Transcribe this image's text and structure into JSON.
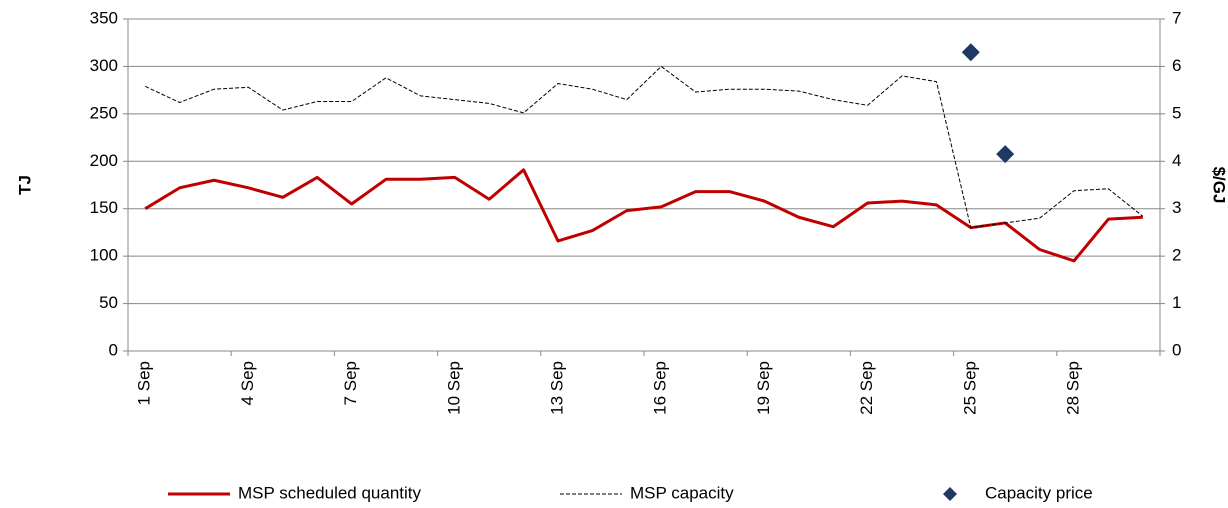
{
  "chart_data": {
    "type": "line",
    "categories": [
      "1 Sep",
      null,
      null,
      "4 Sep",
      null,
      null,
      "7 Sep",
      null,
      null,
      "10 Sep",
      null,
      null,
      "13 Sep",
      null,
      null,
      "16 Sep",
      null,
      null,
      "19 Sep",
      null,
      null,
      "22 Sep",
      null,
      null,
      "25 Sep",
      null,
      null,
      "28 Sep",
      null,
      null
    ],
    "y_label": "TJ",
    "y2_label": "$/GJ",
    "ylim": [
      0,
      350
    ],
    "yticks": [
      0,
      50,
      100,
      150,
      200,
      250,
      300,
      350
    ],
    "y2lim": [
      0,
      7
    ],
    "y2ticks": [
      0,
      1,
      2,
      3,
      4,
      5,
      6,
      7
    ],
    "grid": true,
    "legend": "bottom",
    "series": [
      {
        "name": "MSP scheduled quantity",
        "color": "#c00000",
        "style": "solid",
        "values": [
          150,
          172,
          180,
          172,
          162,
          183,
          155,
          181,
          181,
          183,
          160,
          191,
          116,
          127,
          148,
          152,
          168,
          168,
          158,
          141,
          131,
          156,
          158,
          154,
          130,
          135,
          107,
          95,
          139,
          141
        ]
      },
      {
        "name": "MSP capacity",
        "color": "#000000",
        "style": "dashed",
        "values": [
          279,
          262,
          276,
          278,
          254,
          263,
          263,
          288,
          269,
          265,
          261,
          251,
          282,
          276,
          265,
          300,
          273,
          276,
          276,
          274,
          265,
          259,
          290,
          284,
          130,
          135,
          140,
          169,
          171,
          142
        ]
      },
      {
        "name": "Capacity price",
        "color": "#1f3864",
        "style": "marker",
        "axis": "y2",
        "values": [
          null,
          null,
          null,
          null,
          null,
          null,
          null,
          null,
          null,
          null,
          null,
          null,
          null,
          null,
          null,
          null,
          null,
          null,
          null,
          null,
          null,
          null,
          null,
          null,
          6.3,
          4.15,
          null,
          null,
          null,
          null
        ]
      }
    ]
  }
}
